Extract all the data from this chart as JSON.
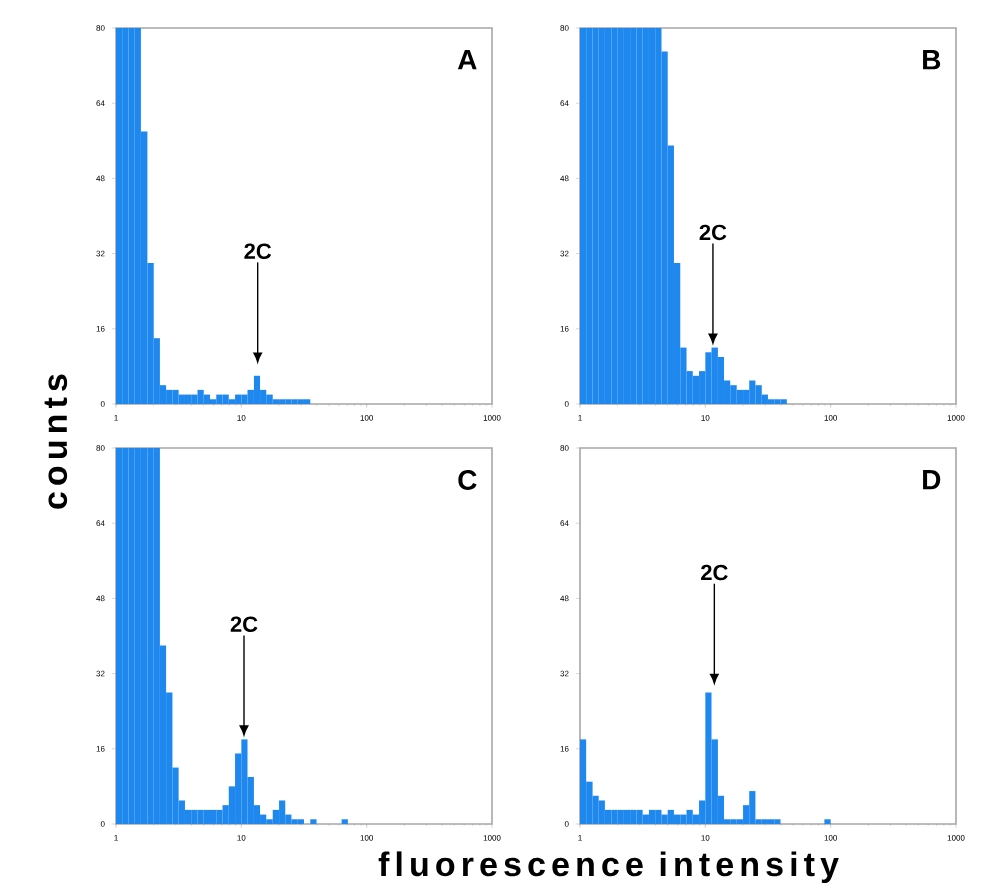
{
  "chart_data": [
    {
      "type": "histogram",
      "title": "A",
      "ylabel": "counts",
      "log": "x",
      "color": "#1e88ef",
      "bins": [
        1,
        1.12,
        1.26,
        1.41,
        1.58,
        1.78,
        2,
        2.24,
        2.51,
        2.82,
        3.16,
        3.55,
        3.98,
        4.47,
        5.01,
        5.62,
        6.31,
        7.08,
        7.94,
        8.91,
        10,
        11.2,
        12.6,
        14.1,
        15.8,
        17.8,
        20,
        22.4,
        25.1,
        28.2,
        31.6,
        35.5,
        39.8,
        44.7,
        50.1,
        56.2,
        63.1,
        70.8,
        79.4,
        89.1,
        100,
        112,
        126,
        141,
        158,
        178,
        200,
        224,
        251,
        282,
        316,
        355,
        398,
        447,
        501,
        562,
        631,
        708,
        794,
        891,
        1000
      ],
      "values": [
        80,
        80,
        80,
        80,
        58,
        30,
        14,
        4,
        3,
        3,
        2,
        2,
        2,
        3,
        2,
        1,
        2,
        2,
        1,
        2,
        2,
        3,
        6,
        3,
        2,
        1,
        1,
        1,
        1,
        1,
        1,
        0,
        0,
        0,
        0,
        0,
        0,
        0,
        0,
        0,
        0,
        0,
        0,
        0,
        0,
        0,
        0,
        0,
        0,
        0,
        0,
        0,
        0,
        0,
        0,
        0,
        0,
        0,
        0,
        0
      ],
      "xlim": [
        1,
        1000
      ],
      "xticks": [
        1,
        10,
        100,
        1000
      ],
      "ylim": [
        0,
        80
      ],
      "yticks": [
        0,
        16,
        32,
        48,
        64,
        80
      ],
      "annotations": [
        {
          "text": "2C",
          "x": 13.5,
          "y": 8
        }
      ]
    },
    {
      "type": "histogram",
      "title": "B",
      "log": "x",
      "color": "#1e88ef",
      "bins": [
        1,
        1.12,
        1.26,
        1.41,
        1.58,
        1.78,
        2,
        2.24,
        2.51,
        2.82,
        3.16,
        3.55,
        3.98,
        4.47,
        5.01,
        5.62,
        6.31,
        7.08,
        7.94,
        8.91,
        10,
        11.2,
        12.6,
        14.1,
        15.8,
        17.8,
        20,
        22.4,
        25.1,
        28.2,
        31.6,
        35.5,
        39.8,
        44.7,
        50.1,
        56.2,
        63.1,
        70.8,
        79.4,
        89.1,
        100,
        112,
        126,
        141,
        158,
        178,
        200,
        224,
        251,
        282,
        316,
        355,
        398,
        447,
        501,
        562,
        631,
        708,
        794,
        891,
        1000
      ],
      "values": [
        80,
        80,
        80,
        80,
        80,
        80,
        80,
        80,
        80,
        80,
        80,
        80,
        80,
        75,
        55,
        30,
        12,
        7,
        6,
        7,
        11,
        12,
        10,
        5,
        4,
        3,
        3,
        5,
        4,
        2,
        1,
        1,
        1,
        0,
        0,
        0,
        0,
        0,
        0,
        0,
        0,
        0,
        0,
        0,
        0,
        0,
        0,
        0,
        0,
        0,
        0,
        0,
        0,
        0,
        0,
        0,
        0,
        0,
        0,
        0
      ],
      "xlim": [
        1,
        1000
      ],
      "xticks": [
        1,
        10,
        100,
        1000
      ],
      "ylim": [
        0,
        80
      ],
      "yticks": [
        0,
        16,
        32,
        48,
        64,
        80
      ],
      "annotations": [
        {
          "text": "2C",
          "x": 11.5,
          "y": 12
        }
      ]
    },
    {
      "type": "histogram",
      "title": "C",
      "xlabel": "fluorescence intensity",
      "log": "x",
      "color": "#1e88ef",
      "bins": [
        1,
        1.12,
        1.26,
        1.41,
        1.58,
        1.78,
        2,
        2.24,
        2.51,
        2.82,
        3.16,
        3.55,
        3.98,
        4.47,
        5.01,
        5.62,
        6.31,
        7.08,
        7.94,
        8.91,
        10,
        11.2,
        12.6,
        14.1,
        15.8,
        17.8,
        20,
        22.4,
        25.1,
        28.2,
        31.6,
        35.5,
        39.8,
        44.7,
        50.1,
        56.2,
        63.1,
        70.8,
        79.4,
        89.1,
        100,
        112,
        126,
        141,
        158,
        178,
        200,
        224,
        251,
        282,
        316,
        355,
        398,
        447,
        501,
        562,
        631,
        708,
        794,
        891,
        1000
      ],
      "values": [
        80,
        80,
        80,
        80,
        80,
        80,
        80,
        38,
        28,
        12,
        5,
        3,
        3,
        3,
        3,
        3,
        3,
        4,
        8,
        15,
        18,
        10,
        4,
        2,
        1,
        3,
        5,
        2,
        1,
        1,
        0,
        1,
        0,
        0,
        0,
        0,
        1,
        0,
        0,
        0,
        0,
        0,
        0,
        0,
        0,
        0,
        0,
        0,
        0,
        0,
        0,
        0,
        0,
        0,
        0,
        0,
        0,
        0,
        0,
        0
      ],
      "xlim": [
        1,
        1000
      ],
      "xticks": [
        1,
        10,
        100,
        1000
      ],
      "ylim": [
        0,
        80
      ],
      "yticks": [
        0,
        16,
        32,
        48,
        64,
        80
      ],
      "annotations": [
        {
          "text": "2C",
          "x": 10.5,
          "y": 18
        }
      ]
    },
    {
      "type": "histogram",
      "title": "D",
      "log": "x",
      "color": "#1e88ef",
      "bins": [
        1,
        1.12,
        1.26,
        1.41,
        1.58,
        1.78,
        2,
        2.24,
        2.51,
        2.82,
        3.16,
        3.55,
        3.98,
        4.47,
        5.01,
        5.62,
        6.31,
        7.08,
        7.94,
        8.91,
        10,
        11.2,
        12.6,
        14.1,
        15.8,
        17.8,
        20,
        22.4,
        25.1,
        28.2,
        31.6,
        35.5,
        39.8,
        44.7,
        50.1,
        56.2,
        63.1,
        70.8,
        79.4,
        89.1,
        100,
        112,
        126,
        141,
        158,
        178,
        200,
        224,
        251,
        282,
        316,
        355,
        398,
        447,
        501,
        562,
        631,
        708,
        794,
        891,
        1000
      ],
      "values": [
        18,
        9,
        6,
        5,
        3,
        3,
        3,
        3,
        3,
        3,
        2,
        3,
        3,
        2,
        3,
        2,
        2,
        3,
        2,
        5,
        28,
        18,
        6,
        1,
        1,
        1,
        4,
        7,
        1,
        1,
        1,
        1,
        0,
        0,
        0,
        0,
        0,
        0,
        0,
        1,
        0,
        0,
        0,
        0,
        0,
        0,
        0,
        0,
        0,
        0,
        0,
        0,
        0,
        0,
        0,
        0,
        0,
        0,
        0,
        0
      ],
      "xlim": [
        1,
        1000
      ],
      "xticks": [
        1,
        10,
        100,
        1000
      ],
      "ylim": [
        0,
        80
      ],
      "yticks": [
        0,
        16,
        32,
        48,
        64,
        80
      ],
      "annotations": [
        {
          "text": "2C",
          "x": 11.8,
          "y": 29
        }
      ]
    }
  ]
}
